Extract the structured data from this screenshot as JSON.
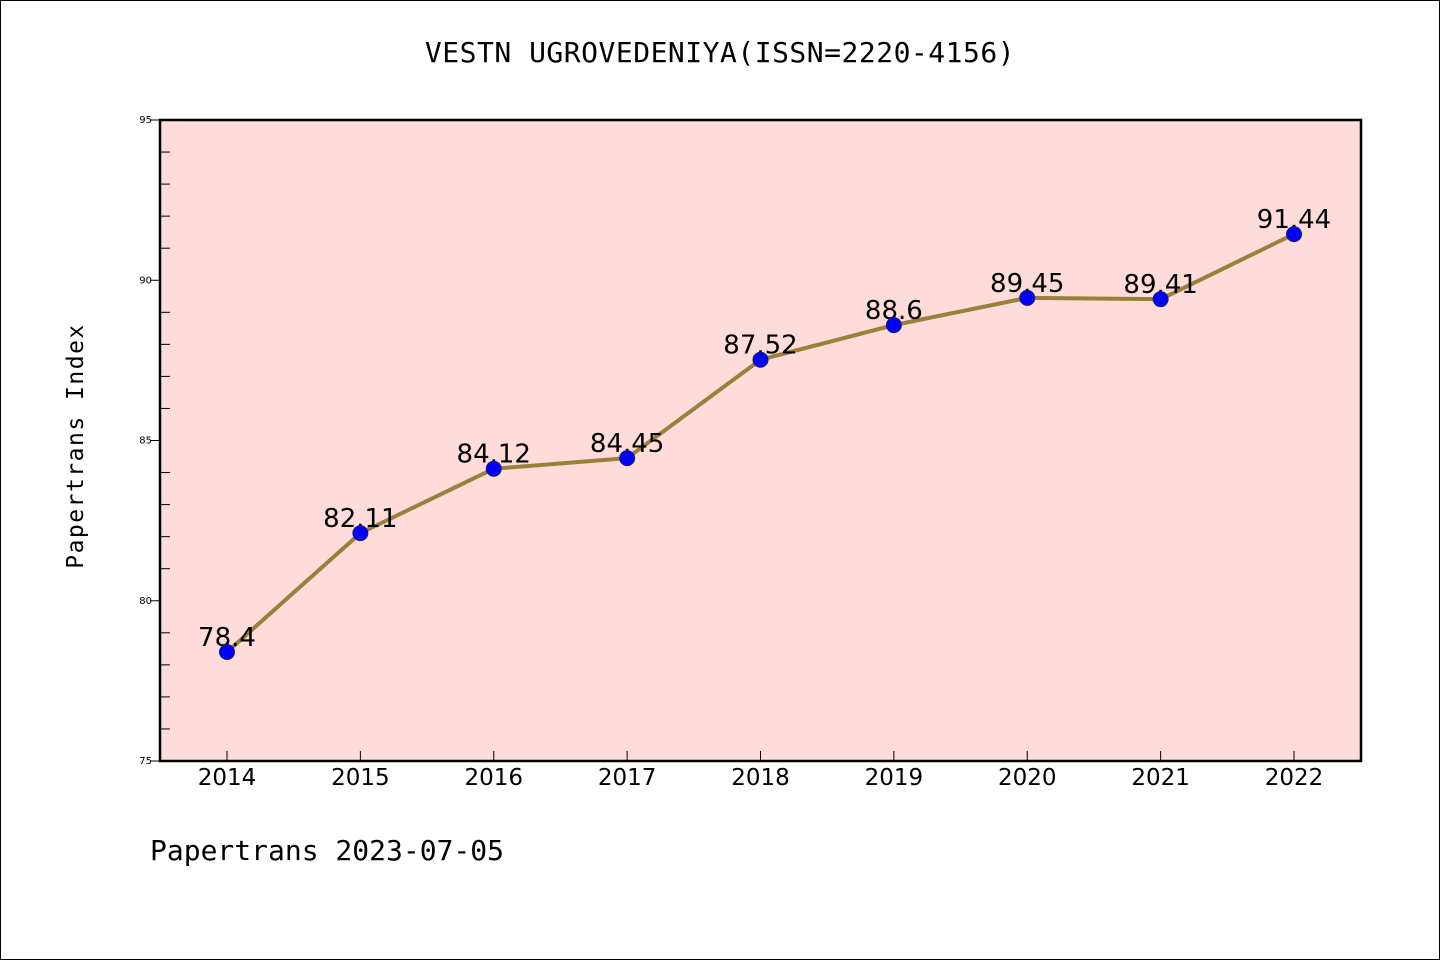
{
  "chart_data": {
    "type": "line",
    "title": "VESTN UGROVEDENIYA(ISSN=2220-4156)",
    "xlabel": "",
    "ylabel": "Papertrans Index",
    "x": [
      "2014",
      "2015",
      "2016",
      "2017",
      "2018",
      "2019",
      "2020",
      "2021",
      "2022"
    ],
    "values": [
      78.4,
      82.11,
      84.12,
      84.45,
      87.52,
      88.6,
      89.45,
      89.41,
      91.44
    ],
    "data_labels": [
      "78.4",
      "82.11",
      "84.12",
      "84.45",
      "87.52",
      "88.6",
      "89.45",
      "89.41",
      "91.44"
    ],
    "ylim": [
      75,
      95
    ],
    "y_ticks": [
      75,
      80,
      85,
      90,
      95
    ],
    "grid": false,
    "legend": "none",
    "colors": {
      "plot_background": "#fddcd9",
      "line": "#9b7f3a",
      "marker_fill": "#0000ff",
      "marker_edge": "#1a1a6e",
      "axes": "#000000"
    }
  },
  "footer": {
    "text": "Papertrans 2023-07-05"
  }
}
